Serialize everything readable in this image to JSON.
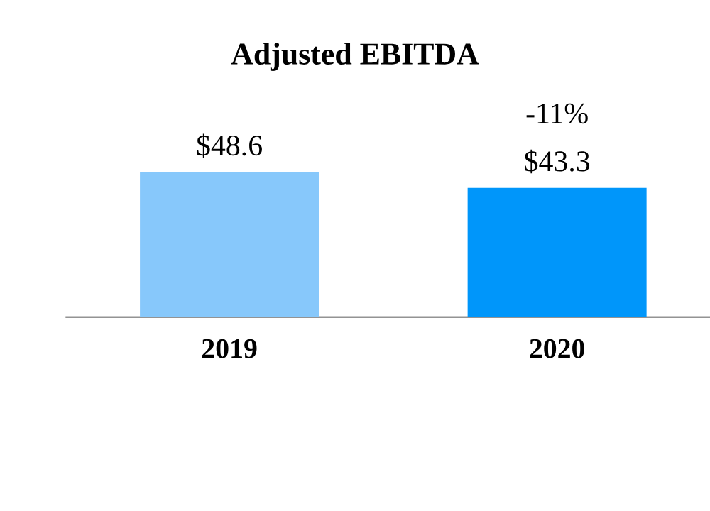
{
  "chart_data": {
    "type": "bar",
    "title": "Adjusted EBITDA",
    "categories": [
      "2019",
      "2020"
    ],
    "values": [
      48.6,
      43.3
    ],
    "colors": [
      "#87c8fb",
      "#0096fa"
    ],
    "value_labels": [
      "$48.6",
      "$43.3"
    ],
    "annotations": [
      "-11%"
    ],
    "grid": false
  }
}
